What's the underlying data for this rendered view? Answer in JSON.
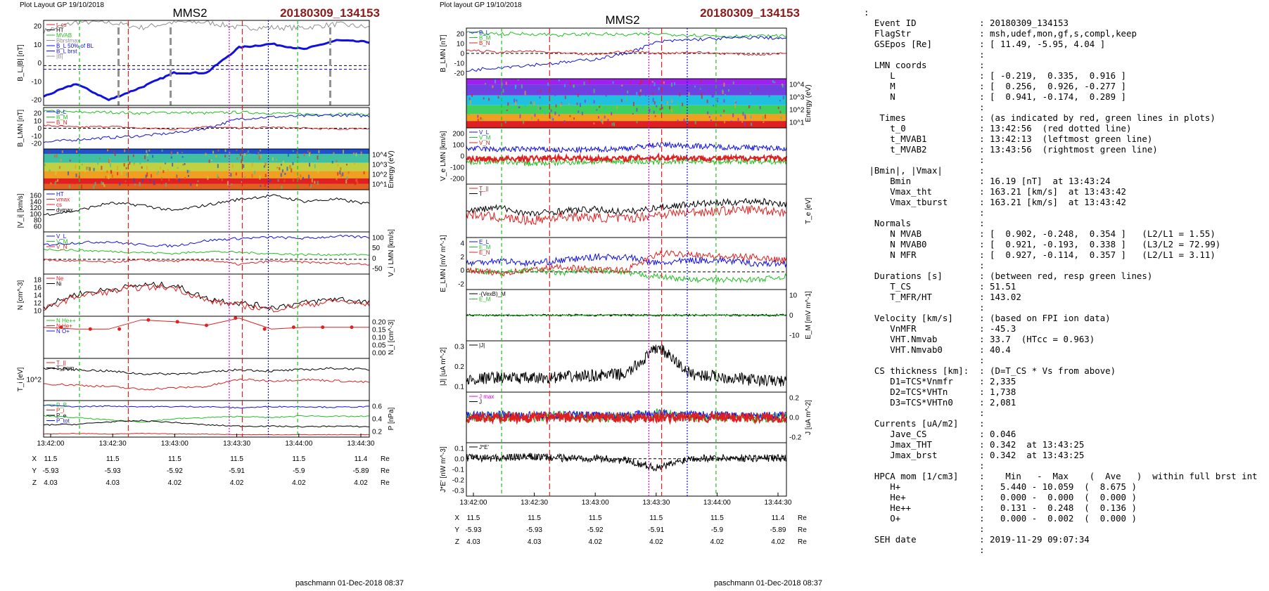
{
  "colors": {
    "title_red": "#8b1a1a",
    "bl_blue": "#1010e0",
    "field_green": "#20c020",
    "field_red": "#e02020",
    "magenta": "#e000e0",
    "gray": "#909090"
  },
  "plot1": {
    "header": "Plot Layout GP 19/10/2018",
    "spacecraft": "MMS2",
    "event": "20180309_134153",
    "footer": "paschmann 01-Dec-2018 08:37",
    "x_ticks": [
      "13:42:00",
      "13:42:30",
      "13:43:00",
      "13:43:30",
      "13:44:00",
      "13:44:30"
    ],
    "ephem": {
      "labels": [
        "X",
        "Y",
        "Z"
      ],
      "unit": "Re",
      "rows": [
        [
          "11.5",
          "11.5",
          "11.5",
          "11.5",
          "11.5",
          "11.4"
        ],
        [
          "-5.93",
          "-5.93",
          "-5.92",
          "-5.91",
          "-5.9",
          "-5.89"
        ],
        [
          "4.03",
          "4.03",
          "4.02",
          "4.02",
          "4.02",
          "4.02"
        ]
      ]
    },
    "panels": [
      {
        "ylabel": "B_L,|B| [nT]",
        "ticks": [
          "20",
          "10",
          "0",
          "-10",
          "-20"
        ],
        "side": "left",
        "legend": [
          "t_cs",
          "HT",
          "MVAB",
          "Bbrstmax",
          "B_L 50% of BL",
          "B_L brst",
          "|B|"
        ]
      },
      {
        "ylabel": "B_LMN [nT]",
        "ticks": [
          "20",
          "10",
          "0",
          "-10",
          "-20"
        ],
        "side": "left",
        "legend": [
          "B_L",
          "B_M",
          "B_N"
        ]
      },
      {
        "ylabel": "Energy (eV)",
        "ticks": [
          "10^4",
          "10^3",
          "10^2",
          "10^1"
        ],
        "side": "right",
        "legend": []
      },
      {
        "ylabel": "|V_i| [km/s]",
        "ticks": [
          "160",
          "140",
          "120",
          "100",
          "80",
          "60"
        ],
        "side": "left",
        "legend": [
          "HT",
          "vmax",
          "cs",
          "dvmax"
        ]
      },
      {
        "ylabel": "V_i LMN [km/s]",
        "ticks": [
          "100",
          "50",
          "0",
          "-50"
        ],
        "side": "right",
        "legend": [
          "V_L",
          "V_M",
          "V_N"
        ]
      },
      {
        "ylabel": "N [cm^-3]",
        "ticks": [
          "18",
          "16",
          "14",
          "12",
          "10"
        ],
        "side": "left",
        "legend": [
          "Ne",
          "Ni"
        ]
      },
      {
        "ylabel": "N_i [cm^-3]",
        "ticks": [
          "0.20",
          "0.15",
          "0.10",
          "0.05",
          "0.00"
        ],
        "side": "right",
        "legend": [
          "N He++",
          "N He+",
          "N O+"
        ]
      },
      {
        "ylabel": "T_i [eV]",
        "ticks": [
          "10^2"
        ],
        "side": "left",
        "legend": [
          "T_||",
          "T_perp"
        ]
      },
      {
        "ylabel": "P [nPa]",
        "ticks": [
          "0.6",
          "0.4",
          "0.2"
        ],
        "side": "right",
        "legend": [
          "P_B",
          "P_i",
          "P_e",
          "P_tot"
        ]
      }
    ]
  },
  "plot2": {
    "header": "Plot layout GP 19/10/2018",
    "spacecraft": "MMS2",
    "event": "20180309_134153",
    "footer": "paschmann 01-Dec-2018 08:37",
    "x_ticks": [
      "13:42:00",
      "13:42:30",
      "13:43:00",
      "13:43:30",
      "13:44:00",
      "13:44:30"
    ],
    "ephem": {
      "labels": [
        "X",
        "Y",
        "Z"
      ],
      "unit": "Re",
      "rows": [
        [
          "11.5",
          "11.5",
          "11.5",
          "11.5",
          "11.5",
          "11.4"
        ],
        [
          "-5.93",
          "-5.93",
          "-5.92",
          "-5.91",
          "-5.9",
          "-5.89"
        ],
        [
          "4.03",
          "4.03",
          "4.02",
          "4.02",
          "4.02",
          "4.02"
        ]
      ]
    },
    "panels": [
      {
        "ylabel": "B_LMN [nT]",
        "ticks": [
          "20",
          "10",
          "0",
          "-10",
          "-20"
        ],
        "side": "left",
        "legend": [
          "B_L",
          "B_M",
          "B_N"
        ]
      },
      {
        "ylabel": "Energy (eV)",
        "ticks": [
          "10^4",
          "10^3",
          "10^2",
          "10^1"
        ],
        "side": "right",
        "legend": []
      },
      {
        "ylabel": "V_e LMN [km/s]",
        "ticks": [
          "200",
          "100",
          "0",
          "-100",
          "-200"
        ],
        "side": "left",
        "legend": [
          "V_L",
          "V_M",
          "V_N"
        ]
      },
      {
        "ylabel": "T_e [eV]",
        "ticks": [],
        "side": "right",
        "legend": [
          "T_||",
          "T"
        ]
      },
      {
        "ylabel": "E_LMN [mV m^-1]",
        "ticks": [
          "4",
          "2",
          "0",
          "-2"
        ],
        "side": "left",
        "legend": [
          "E_L",
          "E_M",
          "E_N"
        ]
      },
      {
        "ylabel": "E_M [mV m^-1]",
        "ticks": [
          "10",
          "0",
          "-10"
        ],
        "side": "right",
        "legend": [
          "-(VexB)_M",
          "E_M"
        ]
      },
      {
        "ylabel": "|J| [uA m^-2]",
        "ticks": [
          "0.3",
          "0.2",
          "0.1"
        ],
        "side": "left",
        "legend": [
          "|J|"
        ]
      },
      {
        "ylabel": "J [uA m^-2]",
        "ticks": [
          "0.2",
          "0.0",
          "-0.2"
        ],
        "side": "right",
        "legend": [
          "J max",
          "J"
        ]
      },
      {
        "ylabel": "J*E' [nW m^-3]",
        "ticks": [
          "0.1",
          "0.0",
          "-0.1",
          "-0.2",
          "-0.3"
        ],
        "side": "left",
        "legend": [
          "J*E'"
        ]
      }
    ]
  },
  "chart_data": [
    {
      "type": "line",
      "title": "MMS2",
      "x": [
        "13:42:00",
        "13:42:15",
        "13:42:30",
        "13:42:45",
        "13:43:00",
        "13:43:15",
        "13:43:30",
        "13:43:45",
        "13:44:00",
        "13:44:15",
        "13:44:30"
      ],
      "series": [
        {
          "name": "B_L brst",
          "values": [
            -17,
            -10,
            -19,
            -12,
            -4,
            -4,
            10,
            12,
            9,
            14,
            13
          ]
        },
        {
          "name": "|B|",
          "values": [
            19,
            24,
            24,
            21,
            24,
            24,
            21,
            21,
            21,
            23,
            21
          ]
        },
        {
          "name": "Ni",
          "values": [
            11,
            14,
            15,
            16,
            16,
            13,
            12,
            11,
            12,
            13,
            12
          ]
        },
        {
          "name": "N He++",
          "values": [
            0.17,
            0.16,
            0.16,
            0.21,
            0.2,
            0.18,
            0.22,
            0.16,
            0.17,
            0.17,
            0.17
          ]
        }
      ],
      "ylabel": "B_L,|B| [nT]",
      "ylim": [
        -22,
        25
      ]
    },
    {
      "type": "line",
      "title": "MMS2",
      "x": [
        "13:42:00",
        "13:42:15",
        "13:42:30",
        "13:42:45",
        "13:43:00",
        "13:43:15",
        "13:43:30",
        "13:43:45",
        "13:44:00",
        "13:44:15",
        "13:44:30"
      ],
      "series": [
        {
          "name": "B_L",
          "values": [
            -15,
            -12,
            -10,
            -8,
            -5,
            0,
            10,
            12,
            13,
            14,
            13
          ]
        },
        {
          "name": "|J|",
          "values": [
            0.08,
            0.1,
            0.09,
            0.1,
            0.11,
            0.12,
            0.3,
            0.12,
            0.1,
            0.08,
            0.07
          ]
        }
      ],
      "ylabel": "B_LMN [nT]",
      "ylim": [
        -22,
        22
      ]
    }
  ],
  "summary": {
    "lines": [
      ":",
      "  Event ID            : 20180309_134153",
      "  FlagStr             : msh,udef,mon,gf,s,compl,keep",
      "  GSEpos [Re]         : [ 11.49, -5.95, 4.04 ]",
      "                      :",
      "  LMN coords          :",
      "     L                : [ -0.219,  0.335,  0.916 ]",
      "     M                : [  0.256,  0.926, -0.277 ]",
      "     N                : [  0.941, -0.174,  0.289 ]",
      "                      :",
      "   Times              : (as indicated by red, green lines in plots)",
      "     t_0              : 13:42:56  (red dotted line)",
      "     t_MVAB1          : 13:42:13  (leftmost green line)",
      "     t_MVAB2          : 13:43:56  (rightmost green line)",
      "                      :",
      " |Bmin|, |Vmax|       :",
      "     Bmin             : 16.19 [nT]  at 13:43:24",
      "     Vmax_tht         : 163.21 [km/s]  at 13:43:42",
      "     Vmax_tburst      : 163.21 [km/s]  at 13:43:42",
      "                      :",
      "  Normals             :",
      "     N MVAB           : [  0.902, -0.248,  0.354 ]   (L2/L1 = 1.55)",
      "     N MVAB0          : [  0.921, -0.193,  0.338 ]   (L3/L2 = 72.99)",
      "     N MFR            : [  0.927, -0.114,  0.357 ]   (L2/L1 = 3.11)",
      "                      :",
      "  Durations [s]       : (between red, resp green lines)",
      "     T_CS             : 51.51",
      "     T_MFR/HT         : 143.02",
      "                      :",
      "  Velocity [km/s]     : (based on FPI ion data)",
      "     VnMFR            : -45.3",
      "     VHT.Nmvab        : 33.7  (HTcc = 0.963)",
      "     VHT.Nmvab0       : 40.4",
      "                      :",
      "  CS thickness [km]:  : (D=T_CS * Vs from above)",
      "     D1=TCS*Vnmfr     : 2,335",
      "     D2=TCS*VHTn      : 1,738",
      "     D3=TCS*VHTn0     : 2,081",
      "                      :",
      "  Currents [uA/m2]    :",
      "     Jave_CS          : 0.046",
      "     Jmax_THT         : 0.342  at 13:43:25",
      "     Jmax_brst        : 0.342  at 13:43:25",
      "                      :",
      "  HPCA mom [1/cm3]    :    Min   -  Max    (  Ave   )  within full brst int",
      "     H+               :   5.440 - 10.059  (  8.675 )",
      "     He+              :   0.000 -  0.000  (  0.000 )",
      "     He++             :   0.131 -  0.248  (  0.136 )",
      "     O+               :   0.000 -  0.002  (  0.000 )",
      "                      :",
      "  SEH date            : 2019-11-29 09:07:34",
      "                      :"
    ]
  }
}
